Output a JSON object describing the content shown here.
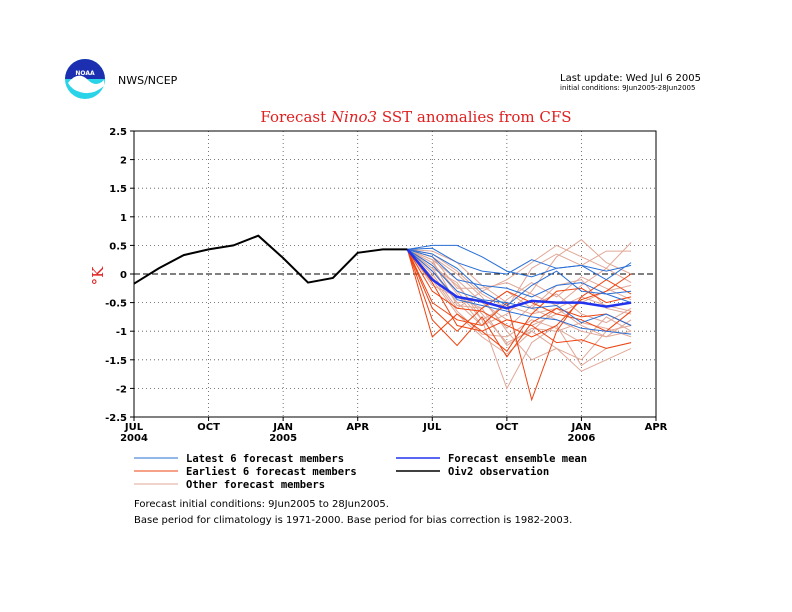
{
  "header": {
    "agency": "NWS/NCEP",
    "logo_text": "NOAA",
    "last_update": "Last update: Wed Jul 6 2005",
    "initial_conditions": "initial conditions: 9Jun2005-28Jun2005"
  },
  "chart_data": {
    "type": "line",
    "title": {
      "part1": "Forecast",
      "part2": "Nino3",
      "part3": "SST anomalies from CFS"
    },
    "ylabel": "°K",
    "ylim": [
      -2.5,
      2.5
    ],
    "yticks": [
      "2.5",
      "2",
      "1.5",
      "1",
      "0.5",
      "0",
      "-0.5",
      "-1",
      "-1.5",
      "-2",
      "-2.5"
    ],
    "xticks": [
      {
        "label": "JUL",
        "year": "2004",
        "month_index": 0
      },
      {
        "label": "OCT",
        "year": "",
        "month_index": 3
      },
      {
        "label": "JAN",
        "year": "2005",
        "month_index": 6
      },
      {
        "label": "APR",
        "year": "",
        "month_index": 9
      },
      {
        "label": "JUL",
        "year": "",
        "month_index": 12
      },
      {
        "label": "OCT",
        "year": "",
        "month_index": 15
      },
      {
        "label": "JAN",
        "year": "2006",
        "month_index": 18
      },
      {
        "label": "APR",
        "year": "",
        "month_index": 21
      }
    ],
    "xlim_months": [
      0,
      21
    ],
    "grid": true,
    "zero_line": true,
    "colors": {
      "latest": "#2a6fd6",
      "earliest": "#ee4411",
      "other": "#e0a898",
      "mean": "#2233ee",
      "observation": "#000000"
    },
    "observation": {
      "name": "Oiv2 observation",
      "x": [
        0,
        1,
        2,
        3,
        4,
        5,
        6,
        7,
        8,
        9,
        10,
        11
      ],
      "y": [
        -0.17,
        0.1,
        0.33,
        0.43,
        0.5,
        0.67,
        0.28,
        -0.15,
        -0.07,
        0.37,
        0.43,
        0.43
      ]
    },
    "ensemble_mean": {
      "name": "Forecast ensemble mean",
      "x": [
        11,
        12,
        13,
        14,
        15,
        16,
        17,
        18,
        19,
        20
      ],
      "y": [
        0.43,
        -0.1,
        -0.4,
        -0.48,
        -0.6,
        -0.47,
        -0.5,
        -0.5,
        -0.57,
        -0.5
      ]
    },
    "forecast_x": [
      11,
      12,
      13,
      14,
      15,
      16,
      17,
      18,
      19,
      20
    ],
    "latest_members": [
      [
        0.43,
        0.5,
        0.5,
        0.3,
        0.05,
        -0.05,
        0.1,
        0.15,
        0.05,
        0.15
      ],
      [
        0.43,
        0.45,
        0.2,
        0.05,
        0.0,
        0.25,
        0.1,
        0.15,
        -0.1,
        0.2
      ],
      [
        0.43,
        0.3,
        -0.1,
        -0.2,
        -0.25,
        -0.4,
        -0.2,
        -0.15,
        -0.35,
        -0.3
      ],
      [
        0.43,
        0.15,
        -0.3,
        -0.45,
        -0.5,
        -0.6,
        -0.55,
        -0.85,
        -0.7,
        -0.9
      ],
      [
        0.43,
        0.05,
        -0.45,
        -0.55,
        -0.65,
        -0.75,
        -0.8,
        -0.95,
        -1.0,
        -1.05
      ],
      [
        0.43,
        0.35,
        0.1,
        -0.3,
        -0.55,
        -0.2,
        0.05,
        -0.3,
        -0.35,
        -0.5
      ]
    ],
    "earliest_members": [
      [
        0.43,
        -1.1,
        -0.7,
        -1.0,
        -0.8,
        -0.9,
        -1.2,
        -1.15,
        -1.3,
        -1.2
      ],
      [
        0.43,
        -0.8,
        -1.25,
        -0.75,
        -1.45,
        -0.85,
        -0.6,
        -0.75,
        -0.7,
        -0.9
      ],
      [
        0.43,
        -0.5,
        -0.8,
        -0.9,
        -0.5,
        -2.2,
        -1.0,
        -0.4,
        -0.1,
        -0.35
      ],
      [
        0.43,
        -0.3,
        -0.6,
        -0.65,
        -0.9,
        -1.1,
        -0.9,
        -0.45,
        -0.3,
        0.0
      ],
      [
        0.43,
        -0.15,
        -0.9,
        -1.0,
        -1.35,
        -0.7,
        -0.3,
        -0.25,
        -0.5,
        -0.4
      ],
      [
        0.43,
        -0.6,
        -1.0,
        -0.6,
        -0.3,
        -0.5,
        -0.7,
        -0.8,
        -1.0,
        -0.65
      ]
    ],
    "other_members": [
      [
        0.43,
        0.4,
        0.2,
        -0.2,
        -0.5,
        -0.6,
        -0.8,
        -1.0,
        -1.1,
        -1.0
      ],
      [
        0.43,
        0.3,
        0.0,
        -0.4,
        -1.0,
        -1.5,
        -1.3,
        -1.7,
        -1.5,
        -1.3
      ],
      [
        0.43,
        0.2,
        -0.3,
        -0.8,
        -2.0,
        -1.2,
        -0.9,
        -1.6,
        -1.3,
        -1.2
      ],
      [
        0.43,
        0.1,
        -0.5,
        -0.9,
        -0.7,
        -0.3,
        0.3,
        0.6,
        0.2,
        0.0
      ],
      [
        0.43,
        0.0,
        -0.6,
        -0.3,
        -0.1,
        0.2,
        0.5,
        0.3,
        0.1,
        0.55
      ],
      [
        0.43,
        -0.2,
        -0.4,
        -0.6,
        -0.3,
        -0.6,
        -0.2,
        -0.1,
        -0.6,
        -0.7
      ],
      [
        0.43,
        0.25,
        -0.1,
        -0.5,
        -0.8,
        -0.9,
        -0.7,
        -0.5,
        -0.3,
        -0.2
      ],
      [
        0.43,
        0.15,
        -0.2,
        -0.7,
        -1.2,
        -1.0,
        -0.6,
        -0.9,
        -1.1,
        -0.8
      ],
      [
        0.43,
        -0.1,
        -0.7,
        -1.1,
        -1.4,
        -1.0,
        -1.3,
        -1.5,
        -1.0,
        -0.9
      ],
      [
        0.43,
        0.35,
        0.05,
        -0.35,
        -0.6,
        0.1,
        0.35,
        0.15,
        0.4,
        0.4
      ],
      [
        0.43,
        0.2,
        -0.35,
        -0.9,
        -0.45,
        -0.15,
        -0.4,
        -0.05,
        -0.25,
        -0.45
      ],
      [
        0.43,
        0.05,
        -0.5,
        -0.45,
        -0.95,
        -0.55,
        -0.35,
        -0.7,
        -0.85,
        -0.6
      ],
      [
        0.43,
        -0.05,
        -0.65,
        -1.05,
        -1.1,
        -0.8,
        -0.95,
        -1.2,
        -0.75,
        -1.0
      ],
      [
        0.43,
        0.3,
        -0.25,
        -0.25,
        -0.15,
        -0.35,
        -0.55,
        -0.2,
        0.1,
        -0.15
      ],
      [
        0.43,
        0.1,
        -0.15,
        -0.8,
        -0.55,
        -0.7,
        -0.6,
        -0.4,
        -0.55,
        -0.65
      ],
      [
        0.43,
        0.25,
        -0.55,
        -0.6,
        -1.25,
        -0.95,
        -1.0,
        -0.85,
        -0.95,
        -1.1
      ]
    ],
    "legend": [
      {
        "label": "Latest 6 forecast members",
        "color": "#2a6fd6",
        "weight": "thin"
      },
      {
        "label": "Earliest 6 forecast members",
        "color": "#ee4411",
        "weight": "thin"
      },
      {
        "label": "Other forecast members",
        "color": "#e0a898",
        "weight": "thin"
      },
      {
        "label": "Forecast ensemble mean",
        "color": "#2233ee",
        "weight": "thick"
      },
      {
        "label": "Oiv2 observation",
        "color": "#000000",
        "weight": "thick"
      }
    ]
  },
  "footnotes": [
    "Forecast initial conditions: 9Jun2005 to 28Jun2005.",
    "Base period for climatology is 1971-2000. Base period for bias correction is 1982-2003."
  ]
}
